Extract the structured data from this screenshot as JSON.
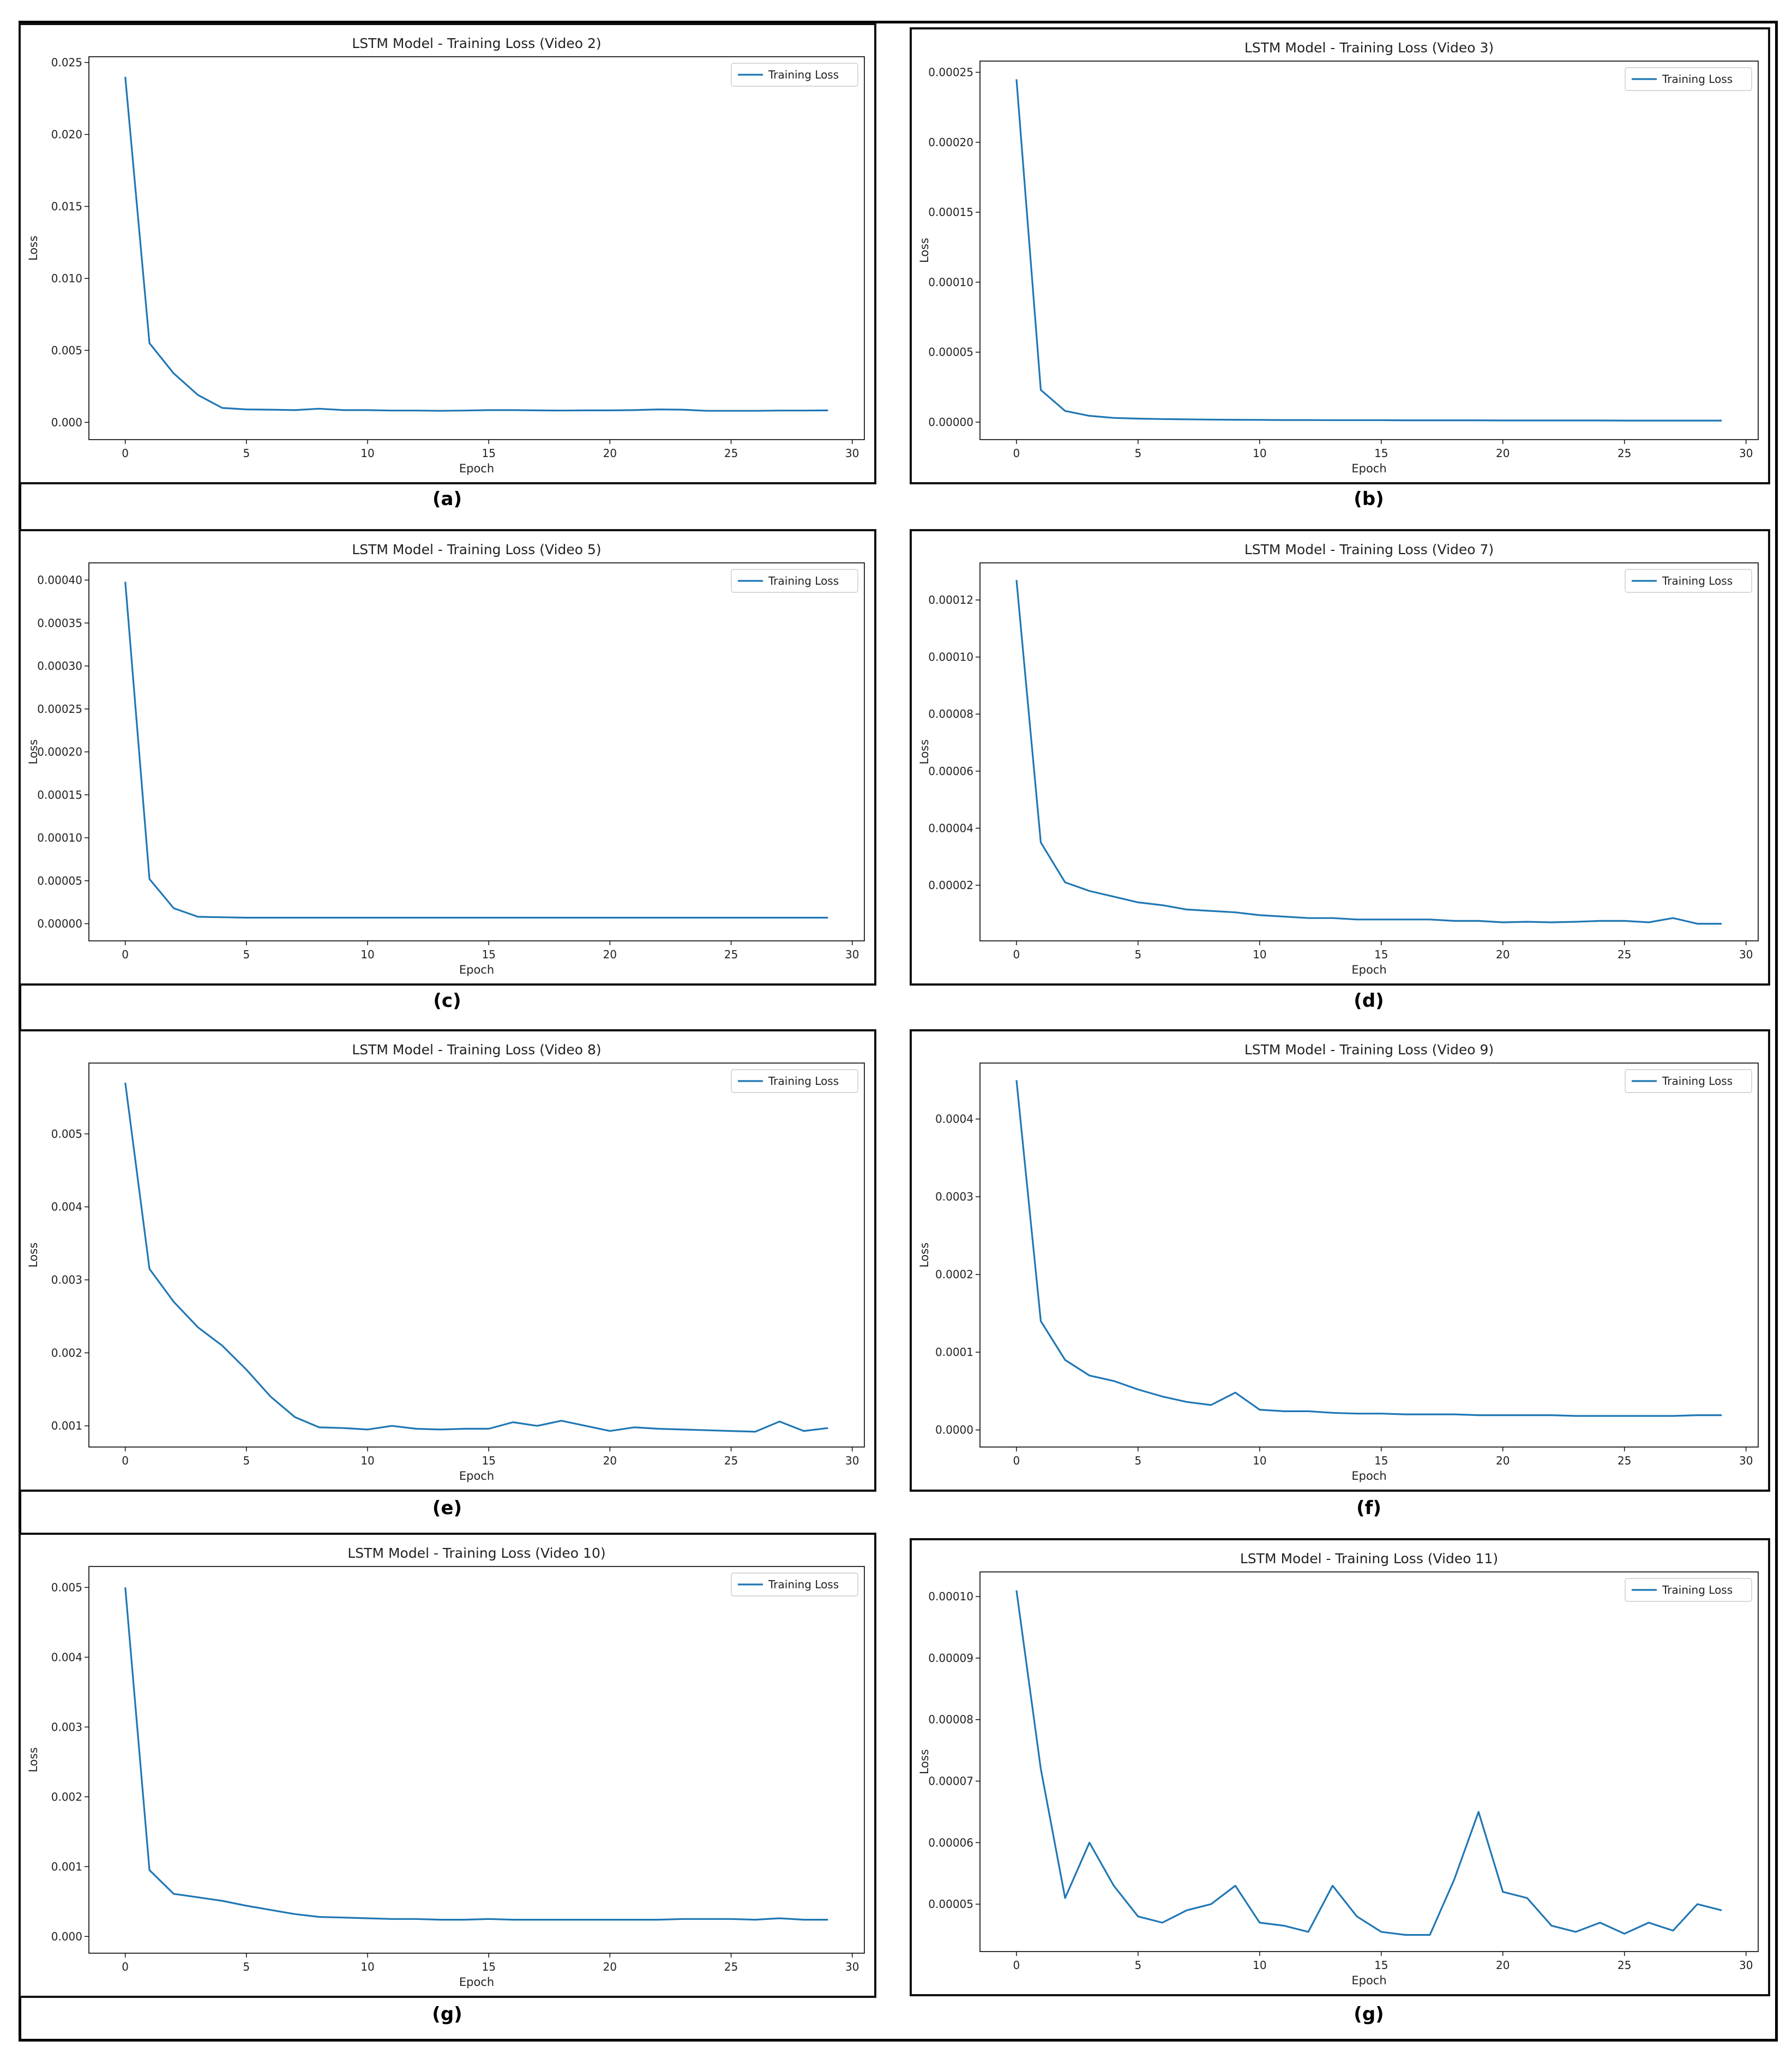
{
  "figure": {
    "panels": [
      {
        "caption": "(a)"
      },
      {
        "caption": "(b)"
      },
      {
        "caption": "(c)"
      },
      {
        "caption": "(d)"
      },
      {
        "caption": "(e)"
      },
      {
        "caption": "(f)"
      },
      {
        "caption": "(g)"
      },
      {
        "caption": "(g)"
      }
    ]
  },
  "colors": {
    "line": "#1f77b4",
    "axes": "#000000",
    "text": "#222222"
  },
  "chart_data": [
    {
      "type": "line",
      "title": "LSTM Model - Training Loss (Video 2)",
      "xlabel": "Epoch",
      "ylabel": "Loss",
      "xlim": [
        -1.5,
        30.5
      ],
      "ylim": [
        -0.0012,
        0.0254
      ],
      "xticks": [
        "0",
        "5",
        "10",
        "15",
        "20",
        "25",
        "30"
      ],
      "yticks": [
        "0.000",
        "0.005",
        "0.010",
        "0.015",
        "0.020",
        "0.025"
      ],
      "ytick_values": [
        0,
        0.005,
        0.01,
        0.015,
        0.02,
        0.025
      ],
      "legend_loc": "upper right",
      "grid": false,
      "series": [
        {
          "name": "Training Loss",
          "x": [
            0,
            1,
            2,
            3,
            4,
            5,
            6,
            7,
            8,
            9,
            10,
            11,
            12,
            13,
            14,
            15,
            16,
            17,
            18,
            19,
            20,
            21,
            22,
            23,
            24,
            25,
            26,
            27,
            28,
            29
          ],
          "y": [
            0.024,
            0.0055,
            0.0034,
            0.0019,
            0.001,
            0.0009,
            0.00088,
            0.00085,
            0.00095,
            0.00085,
            0.00085,
            0.00082,
            0.00082,
            0.0008,
            0.00082,
            0.00085,
            0.00085,
            0.00083,
            0.00082,
            0.00083,
            0.00083,
            0.00085,
            0.0009,
            0.00088,
            0.0008,
            0.0008,
            0.0008,
            0.00082,
            0.00082,
            0.00083
          ]
        }
      ]
    },
    {
      "type": "line",
      "title": "LSTM Model - Training Loss (Video 3)",
      "xlabel": "Epoch",
      "ylabel": "Loss",
      "xlim": [
        -1.5,
        30.5
      ],
      "ylim": [
        -1.25e-05,
        0.000258
      ],
      "xticks": [
        "0",
        "5",
        "10",
        "15",
        "20",
        "25",
        "30"
      ],
      "yticks": [
        "0.00000",
        "0.00005",
        "0.00010",
        "0.00015",
        "0.00020",
        "0.00025"
      ],
      "ytick_values": [
        0,
        5e-05,
        0.0001,
        0.00015,
        0.0002,
        0.00025
      ],
      "legend_loc": "upper right",
      "grid": false,
      "series": [
        {
          "name": "Training Loss",
          "x": [
            0,
            1,
            2,
            3,
            4,
            5,
            6,
            7,
            8,
            9,
            10,
            11,
            12,
            13,
            14,
            15,
            16,
            17,
            18,
            19,
            20,
            21,
            22,
            23,
            24,
            25,
            26,
            27,
            28,
            29
          ],
          "y": [
            0.000245,
            2.3e-05,
            8e-06,
            4.5e-06,
            3e-06,
            2.5e-06,
            2.2e-06,
            2e-06,
            1.8e-06,
            1.7e-06,
            1.6e-06,
            1.5e-06,
            1.5e-06,
            1.4e-06,
            1.4e-06,
            1.4e-06,
            1.3e-06,
            1.3e-06,
            1.3e-06,
            1.3e-06,
            1.2e-06,
            1.2e-06,
            1.2e-06,
            1.2e-06,
            1.2e-06,
            1.1e-06,
            1.1e-06,
            1.1e-06,
            1.1e-06,
            1.1e-06
          ]
        }
      ]
    },
    {
      "type": "line",
      "title": "LSTM Model - Training Loss (Video 5)",
      "xlabel": "Epoch",
      "ylabel": "Loss",
      "xlim": [
        -1.5,
        30.5
      ],
      "ylim": [
        -2e-05,
        0.00042
      ],
      "xticks": [
        "0",
        "5",
        "10",
        "15",
        "20",
        "25",
        "30"
      ],
      "yticks": [
        "0.00000",
        "0.00005",
        "0.00010",
        "0.00015",
        "0.00020",
        "0.00025",
        "0.00030",
        "0.00035",
        "0.00040"
      ],
      "ytick_values": [
        0,
        5e-05,
        0.0001,
        0.00015,
        0.0002,
        0.00025,
        0.0003,
        0.00035,
        0.0004
      ],
      "legend_loc": "upper right",
      "grid": false,
      "series": [
        {
          "name": "Training Loss",
          "x": [
            0,
            1,
            2,
            3,
            4,
            5,
            6,
            7,
            8,
            9,
            10,
            11,
            12,
            13,
            14,
            15,
            16,
            17,
            18,
            19,
            20,
            21,
            22,
            23,
            24,
            25,
            26,
            27,
            28,
            29
          ],
          "y": [
            0.000398,
            5.2e-05,
            1.8e-05,
            8e-06,
            7.5e-06,
            7e-06,
            7e-06,
            7e-06,
            7e-06,
            7e-06,
            7e-06,
            7e-06,
            7e-06,
            7e-06,
            7e-06,
            7e-06,
            7e-06,
            7e-06,
            7e-06,
            7e-06,
            7e-06,
            7e-06,
            7e-06,
            7e-06,
            7e-06,
            7e-06,
            7e-06,
            7e-06,
            7e-06,
            7e-06
          ]
        }
      ]
    },
    {
      "type": "line",
      "title": "LSTM Model - Training Loss (Video 7)",
      "xlabel": "Epoch",
      "ylabel": "Loss",
      "xlim": [
        -1.5,
        30.5
      ],
      "ylim": [
        5e-07,
        0.000133
      ],
      "xticks": [
        "0",
        "5",
        "10",
        "15",
        "20",
        "25",
        "30"
      ],
      "yticks": [
        "0.00002",
        "0.00004",
        "0.00006",
        "0.00008",
        "0.00010",
        "0.00012"
      ],
      "ytick_values": [
        2e-05,
        4e-05,
        6e-05,
        8e-05,
        0.0001,
        0.00012
      ],
      "legend_loc": "upper right",
      "grid": false,
      "series": [
        {
          "name": "Training Loss",
          "x": [
            0,
            1,
            2,
            3,
            4,
            5,
            6,
            7,
            8,
            9,
            10,
            11,
            12,
            13,
            14,
            15,
            16,
            17,
            18,
            19,
            20,
            21,
            22,
            23,
            24,
            25,
            26,
            27,
            28,
            29
          ],
          "y": [
            0.000127,
            3.5e-05,
            2.1e-05,
            1.8e-05,
            1.6e-05,
            1.4e-05,
            1.3e-05,
            1.15e-05,
            1.1e-05,
            1.05e-05,
            9.5e-06,
            9e-06,
            8.5e-06,
            8.5e-06,
            8e-06,
            8e-06,
            8e-06,
            8e-06,
            7.5e-06,
            7.5e-06,
            7e-06,
            7.2e-06,
            7e-06,
            7.2e-06,
            7.5e-06,
            7.5e-06,
            7e-06,
            8.5e-06,
            6.5e-06,
            6.5e-06
          ]
        }
      ]
    },
    {
      "type": "line",
      "title": "LSTM Model - Training Loss (Video 8)",
      "xlabel": "Epoch",
      "ylabel": "Loss",
      "xlim": [
        -1.5,
        30.5
      ],
      "ylim": [
        0.00071,
        0.00597
      ],
      "xticks": [
        "0",
        "5",
        "10",
        "15",
        "20",
        "25",
        "30"
      ],
      "yticks": [
        "0.001",
        "0.002",
        "0.003",
        "0.004",
        "0.005"
      ],
      "ytick_values": [
        0.001,
        0.002,
        0.003,
        0.004,
        0.005
      ],
      "legend_loc": "upper right",
      "grid": false,
      "series": [
        {
          "name": "Training Loss",
          "x": [
            0,
            1,
            2,
            3,
            4,
            5,
            6,
            7,
            8,
            9,
            10,
            11,
            12,
            13,
            14,
            15,
            16,
            17,
            18,
            19,
            20,
            21,
            22,
            23,
            24,
            25,
            26,
            27,
            28,
            29
          ],
          "y": [
            0.0057,
            0.00315,
            0.0027,
            0.00235,
            0.0021,
            0.00177,
            0.0014,
            0.00112,
            0.00098,
            0.00097,
            0.00095,
            0.001,
            0.00096,
            0.00095,
            0.00096,
            0.00096,
            0.00105,
            0.001,
            0.00107,
            0.001,
            0.00093,
            0.00098,
            0.00096,
            0.00095,
            0.00094,
            0.00093,
            0.00092,
            0.00106,
            0.00093,
            0.00097
          ]
        }
      ]
    },
    {
      "type": "line",
      "title": "LSTM Model - Training Loss (Video 9)",
      "xlabel": "Epoch",
      "ylabel": "Loss",
      "xlim": [
        -1.5,
        30.5
      ],
      "ylim": [
        -2.2e-05,
        0.000472
      ],
      "xticks": [
        "0",
        "5",
        "10",
        "15",
        "20",
        "25",
        "30"
      ],
      "yticks": [
        "0.0000",
        "0.0001",
        "0.0002",
        "0.0003",
        "0.0004"
      ],
      "ytick_values": [
        0,
        0.0001,
        0.0002,
        0.0003,
        0.0004
      ],
      "legend_loc": "upper right",
      "grid": false,
      "series": [
        {
          "name": "Training Loss",
          "x": [
            0,
            1,
            2,
            3,
            4,
            5,
            6,
            7,
            8,
            9,
            10,
            11,
            12,
            13,
            14,
            15,
            16,
            17,
            18,
            19,
            20,
            21,
            22,
            23,
            24,
            25,
            26,
            27,
            28,
            29
          ],
          "y": [
            0.00045,
            0.00014,
            9e-05,
            7e-05,
            6.3e-05,
            5.2e-05,
            4.3e-05,
            3.6e-05,
            3.2e-05,
            4.8e-05,
            2.6e-05,
            2.4e-05,
            2.4e-05,
            2.2e-05,
            2.1e-05,
            2.1e-05,
            2e-05,
            2e-05,
            2e-05,
            1.9e-05,
            1.9e-05,
            1.9e-05,
            1.9e-05,
            1.8e-05,
            1.8e-05,
            1.8e-05,
            1.8e-05,
            1.8e-05,
            1.9e-05,
            1.9e-05
          ]
        }
      ]
    },
    {
      "type": "line",
      "title": "LSTM Model - Training Loss (Video 10)",
      "xlabel": "Epoch",
      "ylabel": "Loss",
      "xlim": [
        -1.5,
        30.5
      ],
      "ylim": [
        -0.00024,
        0.0053
      ],
      "xticks": [
        "0",
        "5",
        "10",
        "15",
        "20",
        "25",
        "30"
      ],
      "yticks": [
        "0.000",
        "0.001",
        "0.002",
        "0.003",
        "0.004",
        "0.005"
      ],
      "ytick_values": [
        0,
        0.001,
        0.002,
        0.003,
        0.004,
        0.005
      ],
      "legend_loc": "upper right",
      "grid": false,
      "series": [
        {
          "name": "Training Loss",
          "x": [
            0,
            1,
            2,
            3,
            4,
            5,
            6,
            7,
            8,
            9,
            10,
            11,
            12,
            13,
            14,
            15,
            16,
            17,
            18,
            19,
            20,
            21,
            22,
            23,
            24,
            25,
            26,
            27,
            28,
            29
          ],
          "y": [
            0.005,
            0.00095,
            0.00061,
            0.00056,
            0.00051,
            0.00044,
            0.00038,
            0.00032,
            0.00028,
            0.00027,
            0.00026,
            0.00025,
            0.00025,
            0.00024,
            0.00024,
            0.00025,
            0.00024,
            0.00024,
            0.00024,
            0.00024,
            0.00024,
            0.00024,
            0.00024,
            0.00025,
            0.00025,
            0.00025,
            0.00024,
            0.00026,
            0.00024,
            0.00024
          ]
        }
      ]
    },
    {
      "type": "line",
      "title": "LSTM Model - Training Loss (Video 11)",
      "xlabel": "Epoch",
      "ylabel": "Loss",
      "xlim": [
        -1.5,
        30.5
      ],
      "ylim": [
        4.23e-05,
        0.000104
      ],
      "xticks": [
        "0",
        "5",
        "10",
        "15",
        "20",
        "25",
        "30"
      ],
      "yticks": [
        "0.00005",
        "0.00006",
        "0.00007",
        "0.00008",
        "0.00009",
        "0.00010"
      ],
      "ytick_values": [
        5e-05,
        6e-05,
        7e-05,
        8e-05,
        9e-05,
        0.0001
      ],
      "legend_loc": "upper right",
      "grid": false,
      "series": [
        {
          "name": "Training Loss",
          "x": [
            0,
            1,
            2,
            3,
            4,
            5,
            6,
            7,
            8,
            9,
            10,
            11,
            12,
            13,
            14,
            15,
            16,
            17,
            18,
            19,
            20,
            21,
            22,
            23,
            24,
            25,
            26,
            27,
            28,
            29
          ],
          "y": [
            0.000101,
            7.2e-05,
            5.1e-05,
            6e-05,
            5.3e-05,
            4.8e-05,
            4.7e-05,
            4.9e-05,
            5e-05,
            5.3e-05,
            4.7e-05,
            4.65e-05,
            4.55e-05,
            5.3e-05,
            4.8e-05,
            4.55e-05,
            4.5e-05,
            4.5e-05,
            5.4e-05,
            6.5e-05,
            5.2e-05,
            5.1e-05,
            4.65e-05,
            4.55e-05,
            4.7e-05,
            4.52e-05,
            4.7e-05,
            4.57e-05,
            5e-05,
            4.9e-05
          ]
        }
      ]
    }
  ]
}
